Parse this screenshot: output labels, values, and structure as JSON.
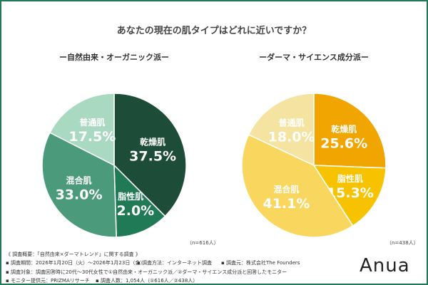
{
  "title": "あなたの現在の肌タイプはどれに近いですか？",
  "chart_data": [
    {
      "type": "pie",
      "title": "ー自然由来・オーガニック派ー",
      "note": "（n=616人）",
      "categories": [
        "乾燥肌",
        "脂性肌",
        "混合肌",
        "普通肌"
      ],
      "values": [
        37.5,
        12.0,
        33.0,
        17.5
      ],
      "colors": [
        "#1d4d39",
        "#1f7a55",
        "#4b9a7b",
        "#a9d9c1"
      ]
    },
    {
      "type": "pie",
      "title": "ーダーマ・サイエンス成分派ー",
      "note": "（n=438人）",
      "categories": [
        "乾燥肌",
        "脂性肌",
        "混合肌",
        "普通肌"
      ],
      "values": [
        25.6,
        15.3,
        41.1,
        18.0
      ],
      "colors": [
        "#f0a500",
        "#f7c300",
        "#f9d75e",
        "#f5e3a2"
      ]
    }
  ],
  "footer": {
    "line1": "《 調査概要：「自然由来×ダーマトレンド」に関する調査 》",
    "period": "▪ 調査期間：2026年1月20日（火）～2026年1月23日（金）",
    "method": "▪ 調査方法：インターネット調査",
    "org": "▪ 調査元：株式会社The Founders",
    "target": "▪ 調査対象：調査回答時に20代～30代女性で①自然由来・オーガニック派／②ダーマ・サイエンス成分派と回答したモニター",
    "provider": "▪ モニター提供元：PRIZMAリサーチ",
    "count": "▪ 調査人数：1,054人（①616人／②438人）"
  },
  "logo": "Anua"
}
